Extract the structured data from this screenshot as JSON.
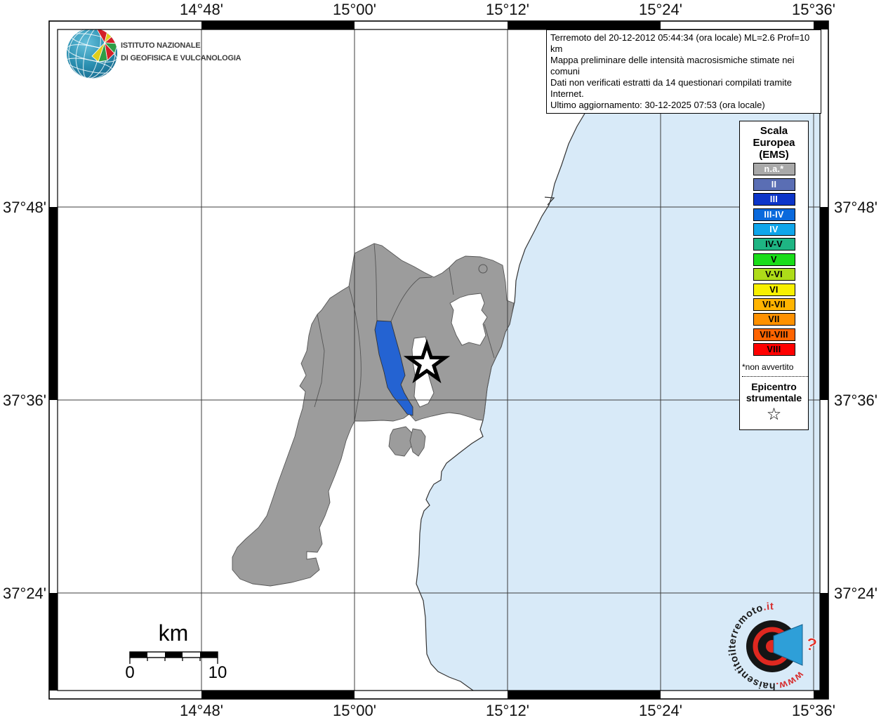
{
  "map_title_box": {
    "lines": [
      "Terremoto del 20-12-2012 05:44:34 (ora locale) ML=2.6 Prof=10 km",
      "Mappa preliminare delle intensità macrosismiche stimate nei comuni",
      "Dati non verificati estratti da 14 questionari compilati tramite Internet.",
      "Ultimo aggiornamento: 30-12-2025 07:53 (ora locale)"
    ]
  },
  "axis": {
    "lon_labels": [
      "14°48'",
      "15°00'",
      "15°12'",
      "15°24'",
      "15°36'"
    ],
    "lat_labels": [
      "37°48'",
      "37°36'",
      "37°24'"
    ]
  },
  "institute": {
    "line1": "ISTITUTO NAZIONALE",
    "line2": "DI GEOFISICA E VULCANOLOGIA"
  },
  "legend": {
    "title_lines": [
      "Scala",
      "Europea",
      "(EMS)"
    ],
    "items": [
      {
        "label": "n.a.*",
        "color": "#A9A9A9",
        "text_color": "#FFFFFF"
      },
      {
        "label": "II",
        "color": "#5A6EB4",
        "text_color": "#FFFFFF"
      },
      {
        "label": "III",
        "color": "#0C35C9",
        "text_color": "#FFFFFF"
      },
      {
        "label": "III-IV",
        "color": "#0A69DC",
        "text_color": "#FFFFFF"
      },
      {
        "label": "IV",
        "color": "#0FA6EB",
        "text_color": "#FFFFFF"
      },
      {
        "label": "IV-V",
        "color": "#1EB583",
        "text_color": "#000000"
      },
      {
        "label": "V",
        "color": "#1ADD1A",
        "text_color": "#000000"
      },
      {
        "label": "V-VI",
        "color": "#AEDC19",
        "text_color": "#000000"
      },
      {
        "label": "VI",
        "color": "#F8F000",
        "text_color": "#000000"
      },
      {
        "label": "VI-VII",
        "color": "#FFB400",
        "text_color": "#000000"
      },
      {
        "label": "VII",
        "color": "#FF9100",
        "text_color": "#000000"
      },
      {
        "label": "VII-VIII",
        "color": "#FF6400",
        "text_color": "#000000"
      },
      {
        "label": "VIII",
        "color": "#FF0000",
        "text_color": "#000000"
      }
    ],
    "footnote": "*non avvertito",
    "epicenter_lines": [
      "Epicentro",
      "strumentale"
    ],
    "epicenter_symbol": "☆"
  },
  "scale_bar": {
    "unit_label": "km",
    "start_label": "0",
    "end_label": "10"
  },
  "site_logo": {
    "prefix": "www.",
    "name": "haisentitoilterremoto",
    "suffix": ".it",
    "question_mark": "?"
  },
  "map_colors": {
    "sea": "#D8EAF8",
    "unclassified_land": "#FFFFFF",
    "no_data_municipality": "#9C9C9C",
    "felt_municipality": "#2463D2"
  }
}
